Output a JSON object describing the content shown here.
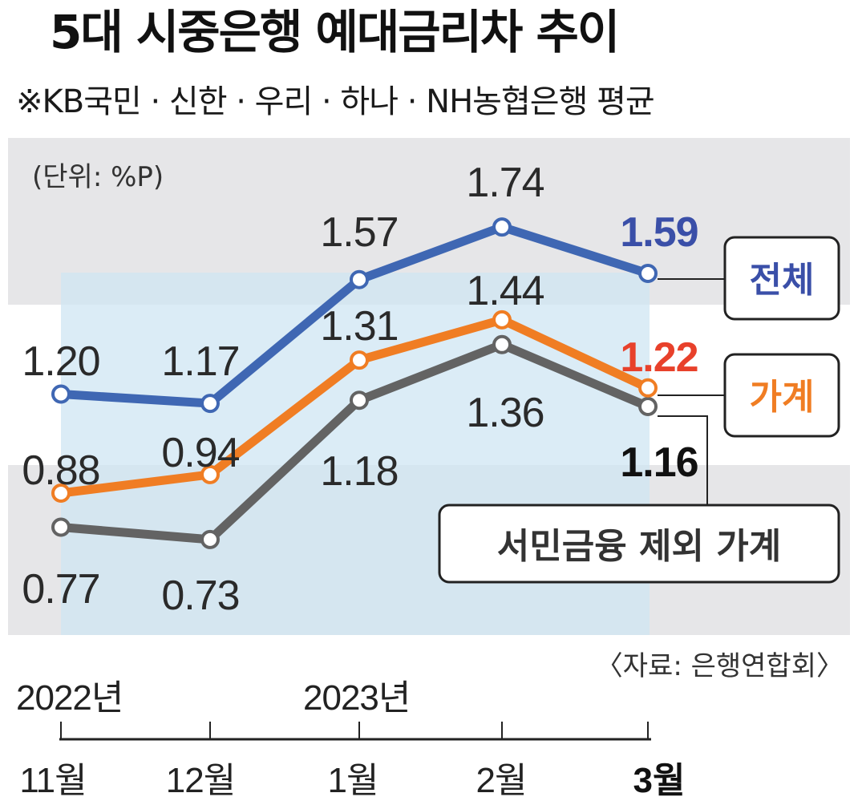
{
  "title": "5대 시중은행 예대금리차 추이",
  "subtitle": "※KB국민 · 신한 · 우리 · 하나 · NH농협은행 평균",
  "unit_label": "(단위: %P)",
  "source": "〈자료: 은행연합회〉",
  "year_labels": {
    "first": "2022년",
    "second": "2023년"
  },
  "colors": {
    "total": "#3f67b3",
    "household": "#f07d23",
    "household_ex": "#636363",
    "total_label": "#3a4fa8",
    "household_label": "#e8412b",
    "household_ex_label": "#111111"
  },
  "chart_data": {
    "type": "line",
    "title": "5대 시중은행 예대금리차 추이",
    "ylabel": "%P",
    "ylim": [
      0.6,
      1.8
    ],
    "categories": [
      "11월",
      "12월",
      "1월",
      "2월",
      "3월"
    ],
    "series": [
      {
        "name": "전체",
        "values": [
          1.2,
          1.17,
          1.57,
          1.74,
          1.59
        ]
      },
      {
        "name": "가계",
        "values": [
          0.88,
          0.94,
          1.31,
          1.44,
          1.22
        ]
      },
      {
        "name": "서민금융 제외 가계",
        "values": [
          0.77,
          0.73,
          1.18,
          1.36,
          1.16
        ]
      }
    ]
  }
}
